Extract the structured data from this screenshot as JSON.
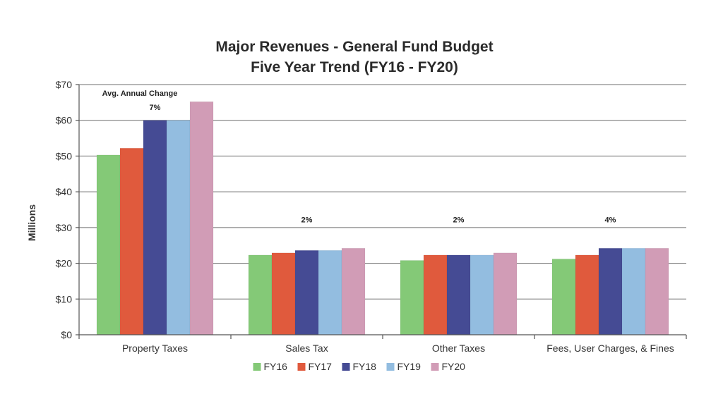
{
  "chart_data": {
    "type": "bar",
    "title": "Major Revenues - General Fund Budget",
    "subtitle": "Five Year Trend (FY16 - FY20)",
    "ylabel": "Millions",
    "xlabel": "",
    "ylim": [
      0,
      70
    ],
    "yticks": [
      0,
      10,
      20,
      30,
      40,
      50,
      60,
      70
    ],
    "ytick_labels": [
      "$0",
      "$10",
      "$20",
      "$30",
      "$40",
      "$50",
      "$60",
      "$70"
    ],
    "grid": true,
    "legend_position": "bottom",
    "categories": [
      "Property Taxes",
      "Sales Tax",
      "Other Taxes",
      "Fees, User Charges, & Fines"
    ],
    "series": [
      {
        "name": "FY16",
        "color": "#84c977",
        "values": [
          50.3,
          22.3,
          20.8,
          21.2
        ]
      },
      {
        "name": "FY17",
        "color": "#e05a3d",
        "values": [
          52.2,
          22.9,
          22.3,
          22.3
        ]
      },
      {
        "name": "FY18",
        "color": "#454b94",
        "values": [
          60.0,
          23.6,
          22.3,
          24.2
        ]
      },
      {
        "name": "FY19",
        "color": "#93bde0",
        "values": [
          60.0,
          23.6,
          22.3,
          24.2
        ]
      },
      {
        "name": "FY20",
        "color": "#d19cb6",
        "values": [
          65.2,
          24.2,
          22.9,
          24.2
        ]
      }
    ],
    "annotations": {
      "header": "Avg. Annual Change",
      "values": [
        "7%",
        "2%",
        "2%",
        "4%"
      ]
    }
  }
}
